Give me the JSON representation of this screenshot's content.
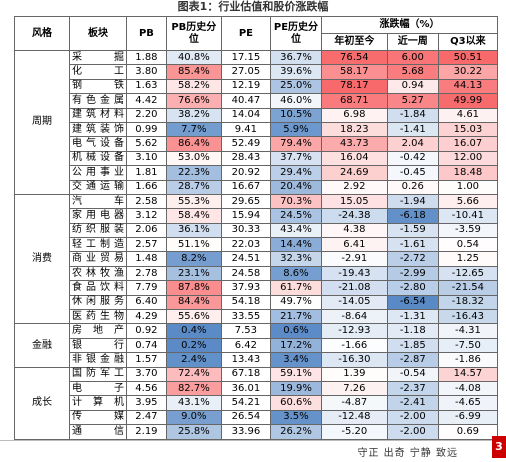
{
  "title": "图表1：行业估值和股价涨跌幅",
  "table": {
    "headers": {
      "style": "风格",
      "sector": "板块",
      "pb": "PB",
      "pb_pct": "PB历史分位",
      "pe": "PE",
      "pe_pct": "PE历史分位",
      "change": "涨跌幅（%）",
      "ytd": "年初至今",
      "week": "近一周",
      "q3": "Q3以来"
    },
    "groups": [
      {
        "style": "周期",
        "rows": [
          [
            "采掘",
            "1.88",
            "40.8%",
            "17.15",
            "36.7%",
            "76.54",
            "6.00",
            "50.51"
          ],
          [
            "化工",
            "3.80",
            "85.4%",
            "27.05",
            "39.6%",
            "58.17",
            "5.68",
            "30.22"
          ],
          [
            "钢铁",
            "1.63",
            "58.2%",
            "12.19",
            "25.0%",
            "78.17",
            "0.94",
            "44.13"
          ],
          [
            "有色金属",
            "4.42",
            "76.6%",
            "40.47",
            "46.0%",
            "68.71",
            "5.27",
            "49.99"
          ],
          [
            "建筑材料",
            "2.20",
            "38.2%",
            "14.04",
            "10.5%",
            "6.98",
            "-1.84",
            "4.61"
          ],
          [
            "建筑装饰",
            "0.99",
            "7.7%",
            "9.41",
            "5.9%",
            "18.23",
            "-1.41",
            "15.03"
          ],
          [
            "电气设备",
            "5.62",
            "86.4%",
            "52.49",
            "79.4%",
            "43.73",
            "2.04",
            "16.07"
          ],
          [
            "机械设备",
            "3.10",
            "53.0%",
            "28.43",
            "37.7%",
            "16.04",
            "-0.42",
            "12.00"
          ],
          [
            "公用事业",
            "1.81",
            "22.3%",
            "20.92",
            "29.4%",
            "24.69",
            "-0.45",
            "18.48"
          ],
          [
            "交通运输",
            "1.66",
            "28.7%",
            "16.67",
            "20.4%",
            "2.92",
            "0.26",
            "1.00"
          ]
        ]
      },
      {
        "style": "消费",
        "rows": [
          [
            "汽车",
            "2.58",
            "55.3%",
            "29.65",
            "70.3%",
            "15.05",
            "-1.94",
            "5.66"
          ],
          [
            "家用电器",
            "3.12",
            "58.4%",
            "15.94",
            "24.5%",
            "-24.38",
            "-6.18",
            "-10.41"
          ],
          [
            "纺织服装",
            "2.06",
            "36.1%",
            "30.33",
            "43.4%",
            "4.38",
            "-1.59",
            "-3.59"
          ],
          [
            "轻工制造",
            "2.57",
            "51.1%",
            "22.03",
            "14.4%",
            "6.41",
            "-1.61",
            "0.54"
          ],
          [
            "商业贸易",
            "1.48",
            "8.2%",
            "24.51",
            "32.3%",
            "-2.91",
            "-2.72",
            "1.25"
          ],
          [
            "农林牧渔",
            "2.78",
            "23.1%",
            "24.58",
            "8.6%",
            "-19.43",
            "-2.99",
            "-12.65"
          ],
          [
            "食品饮料",
            "7.79",
            "87.8%",
            "37.93",
            "61.7%",
            "-21.08",
            "-2.80",
            "-21.54"
          ],
          [
            "休闲服务",
            "6.40",
            "84.4%",
            "54.18",
            "49.7%",
            "-14.05",
            "-6.54",
            "-18.32"
          ],
          [
            "医药生物",
            "4.29",
            "55.6%",
            "33.55",
            "21.7%",
            "-8.64",
            "-1.31",
            "-16.43"
          ]
        ]
      },
      {
        "style": "金融",
        "rows": [
          [
            "房地产",
            "0.92",
            "0.4%",
            "7.53",
            "0.6%",
            "-12.93",
            "-1.18",
            "-4.31"
          ],
          [
            "银行",
            "0.74",
            "0.2%",
            "6.42",
            "17.2%",
            "-1.66",
            "-1.85",
            "-7.50"
          ],
          [
            "非银金融",
            "1.57",
            "2.4%",
            "13.43",
            "3.4%",
            "-16.30",
            "-2.87",
            "-1.86"
          ]
        ]
      },
      {
        "style": "成长",
        "rows": [
          [
            "国防军工",
            "3.70",
            "72.4%",
            "67.18",
            "59.1%",
            "1.39",
            "-0.54",
            "14.57"
          ],
          [
            "电子",
            "4.56",
            "82.7%",
            "36.01",
            "19.9%",
            "7.26",
            "-2.37",
            "-4.08"
          ],
          [
            "计算机",
            "3.95",
            "43.1%",
            "54.21",
            "60.6%",
            "-4.87",
            "-2.41",
            "-4.65"
          ],
          [
            "传媒",
            "2.47",
            "9.0%",
            "26.54",
            "3.5%",
            "-12.48",
            "-2.00",
            "-6.99"
          ],
          [
            "通信",
            "2.19",
            "25.8%",
            "33.96",
            "26.2%",
            "-5.20",
            "-2.00",
            "0.69"
          ]
        ]
      }
    ]
  },
  "footer": {
    "motto": "守正 出奇 宁静 致远",
    "page": "3"
  }
}
